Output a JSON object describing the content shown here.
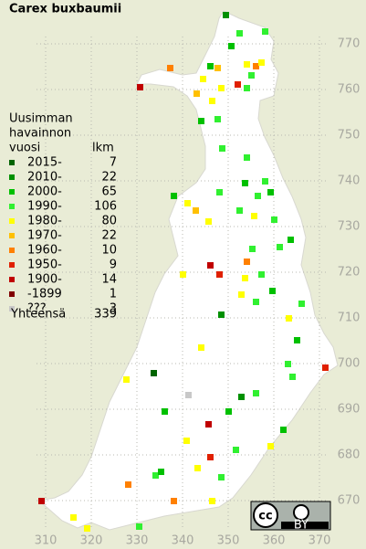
{
  "title": "Carex buxbaumii",
  "legend": {
    "heading": [
      "Uusimman",
      "havainnon"
    ],
    "year_header": "vuosi",
    "count_header": "lkm",
    "entries": [
      {
        "label": "2015-",
        "count": 7,
        "color": "#006400"
      },
      {
        "label": "2010-",
        "count": 22,
        "color": "#009000"
      },
      {
        "label": "2000-",
        "count": 65,
        "color": "#00c000"
      },
      {
        "label": "1990-",
        "count": 106,
        "color": "#30f030"
      },
      {
        "label": "1980-",
        "count": 80,
        "color": "#ffff00"
      },
      {
        "label": "1970-",
        "count": 22,
        "color": "#ffc000"
      },
      {
        "label": "1960-",
        "count": 10,
        "color": "#ff8000"
      },
      {
        "label": "1950-",
        "count": 9,
        "color": "#e02000"
      },
      {
        "label": "1900-",
        "count": 14,
        "color": "#c00000"
      },
      {
        "label": "-1899",
        "count": 1,
        "color": "#800000"
      },
      {
        "label": "???",
        "count": 3,
        "color": "#c8c8c8"
      }
    ],
    "total_label": "Yhteensä",
    "total": 339
  },
  "grid": {
    "x_labels": [
      310,
      320,
      330,
      340,
      350,
      360,
      370
    ],
    "y_labels": [
      770,
      760,
      750,
      740,
      730,
      720,
      710,
      700,
      690,
      680,
      670
    ]
  },
  "license": {
    "icon": "cc",
    "text": "BY"
  }
}
